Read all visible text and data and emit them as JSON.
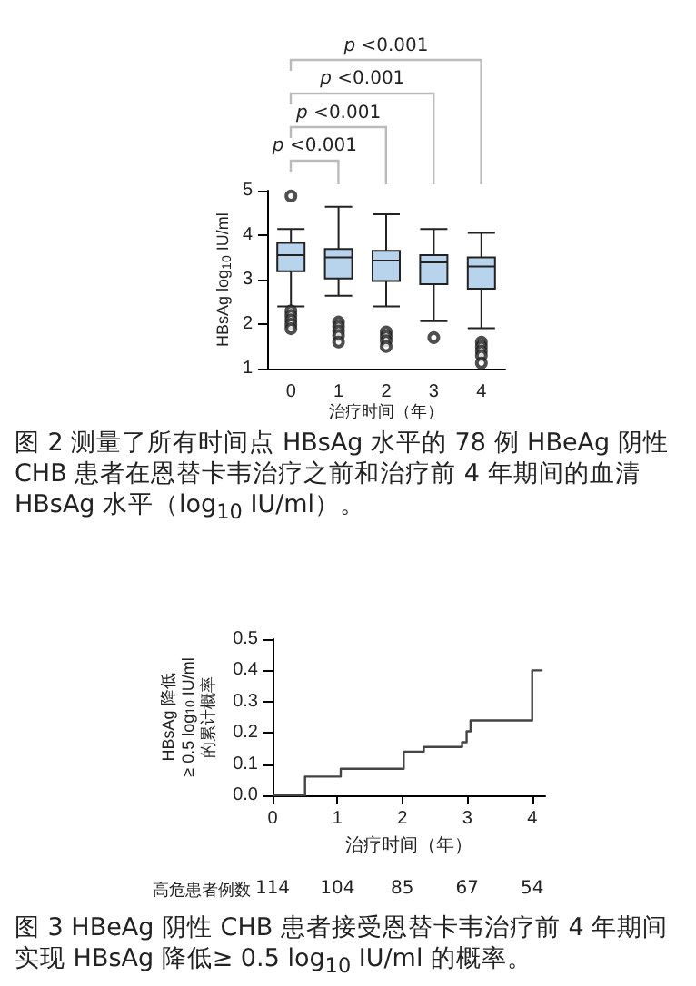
{
  "chart_data": [
    {
      "type": "box",
      "title": "图 2 测量了所有时间点 HBsAg 水平的 78 例 HBeAg 阴性 CHB 患者在恩替卡韦治疗之前和治疗前 4 年期间的血清 HBsAg 水平（log$_{10}$ IU/ml）。",
      "xlabel": "治疗时间（年）",
      "ylabel": "HBsAg log$_{10}$ IU/ml",
      "categories": [
        "0",
        "1",
        "2",
        "3",
        "4"
      ],
      "color": "#b8d4ec",
      "boxes": [
        {
          "low": 2.4,
          "q1": 3.19,
          "median": 3.55,
          "q3": 3.83,
          "high": 4.14,
          "outliers": [
            4.88,
            2.3,
            2.2,
            2.1,
            2.0,
            1.9
          ]
        },
        {
          "low": 2.64,
          "q1": 3.03,
          "median": 3.5,
          "q3": 3.69,
          "high": 4.64,
          "outliers": [
            2.05,
            1.95,
            1.85,
            1.75,
            1.6
          ]
        },
        {
          "low": 2.4,
          "q1": 2.97,
          "median": 3.43,
          "q3": 3.65,
          "high": 4.47,
          "outliers": [
            1.83,
            1.73,
            1.63,
            1.5
          ]
        },
        {
          "low": 2.07,
          "q1": 2.9,
          "median": 3.39,
          "q3": 3.55,
          "high": 4.14,
          "outliers": [
            1.7
          ]
        },
        {
          "low": 1.91,
          "q1": 2.8,
          "median": 3.3,
          "q3": 3.5,
          "high": 4.05,
          "outliers": [
            1.6,
            1.5,
            1.4,
            1.3,
            1.13
          ]
        }
      ],
      "ylim": [
        1,
        5
      ],
      "yticks": [
        1,
        2,
        3,
        4,
        5
      ],
      "grid": false,
      "annotations": [
        "p <0.001",
        "p <0.001",
        "p <0.001",
        "p <0.001"
      ]
    },
    {
      "type": "step",
      "title": "图 3 HBeAg 阴性 CHB 患者接受恩替卡韦治疗前 4 年期间实现 HBsAg 降低≥ 0.5 log$_{10}$ IU/ml 的概率。",
      "xlabel": "治疗时间（年）",
      "ylabel": "HBsAg 降低\n≥ 0.5 log$_{10}$ IU/ml\n的累计概率",
      "series": [
        {
          "color": "#444444",
          "x": [
            0,
            0.5,
            1.0,
            1.05,
            2.02,
            2.33,
            2.92,
            2.99,
            3.05,
            4.0,
            4.16
          ],
          "values": [
            0,
            0.06,
            0.06,
            0.085,
            0.14,
            0.155,
            0.17,
            0.205,
            0.24,
            0.4,
            0.4
          ]
        }
      ],
      "xlim": [
        0,
        4.2
      ],
      "xticks": [
        0,
        1,
        2,
        3,
        4
      ],
      "ylim": [
        0,
        0.5
      ],
      "yticks": [
        {
          "value": 0,
          "label": "0.0"
        },
        0.1,
        0.2,
        0.3,
        0.4,
        0.5
      ],
      "grid": false,
      "marker": "none",
      "annotations": [
        "高危患者例数",
        "114",
        "104",
        "85",
        "67",
        "54"
      ]
    }
  ]
}
